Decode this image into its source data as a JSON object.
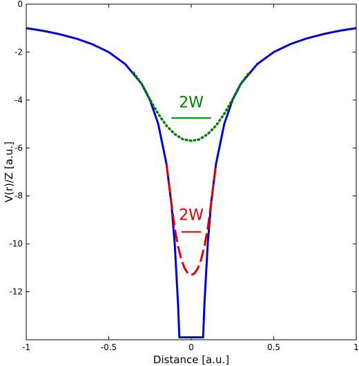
{
  "chart_data": {
    "type": "line",
    "title": "",
    "xlabel": "Distance [a.u.]",
    "ylabel": "V(r)/Z [a.u.]",
    "xlim": [
      -1,
      1
    ],
    "ylim": [
      -14,
      0
    ],
    "xticks": [
      -1,
      -0.5,
      0,
      0.5,
      1
    ],
    "xtick_labels": [
      "-1",
      "-0.5",
      "0",
      "0.5",
      "1"
    ],
    "yticks": [
      0,
      -2,
      -4,
      -6,
      -8,
      -10,
      -12
    ],
    "ytick_labels": [
      "0",
      "-2",
      "-4",
      "-6",
      "-8",
      "-10",
      "-12"
    ],
    "grid": false,
    "legend": "none",
    "series": [
      {
        "style": "solid",
        "color": "#0000cc",
        "x": [
          -1,
          -0.9,
          -0.8,
          -0.7,
          -0.6,
          -0.5,
          -0.4,
          -0.3,
          -0.25,
          -0.2,
          -0.15,
          -0.12,
          -0.1,
          -0.08,
          -0.072,
          0.072,
          0.08,
          0.1,
          0.12,
          0.15,
          0.2,
          0.25,
          0.3,
          0.4,
          0.5,
          0.6,
          0.7,
          0.8,
          0.9,
          1
        ],
        "y": [
          -1,
          -1.11,
          -1.25,
          -1.43,
          -1.67,
          -2,
          -2.5,
          -3.33,
          -4,
          -5,
          -6.67,
          -8.33,
          -10,
          -12.5,
          -13.9,
          -13.9,
          -12.5,
          -10,
          -8.33,
          -6.67,
          -5,
          -4,
          -3.33,
          -2.5,
          -2,
          -1.67,
          -1.43,
          -1.25,
          -1.11,
          -1
        ]
      },
      {
        "style": "dotted",
        "color": "#008000",
        "x": [
          -0.35,
          -0.3,
          -0.25,
          -0.2,
          -0.15,
          -0.1,
          -0.05,
          0,
          0.05,
          0.1,
          0.15,
          0.2,
          0.25,
          0.3,
          0.35
        ],
        "y": [
          -2.86,
          -3.33,
          -3.98,
          -4.58,
          -5.07,
          -5.42,
          -5.64,
          -5.7,
          -5.64,
          -5.42,
          -5.07,
          -4.58,
          -3.98,
          -3.33,
          -2.86
        ]
      },
      {
        "style": "dashed",
        "color": "#dd0000",
        "x": [
          -0.15,
          -0.12,
          -0.1,
          -0.08,
          -0.06,
          -0.04,
          -0.02,
          0,
          0.02,
          0.04,
          0.06,
          0.08,
          0.1,
          0.12,
          0.15
        ],
        "y": [
          -6.67,
          -8.33,
          -9.35,
          -10.1,
          -10.65,
          -11.02,
          -11.23,
          -11.3,
          -11.23,
          -11.02,
          -10.65,
          -10.1,
          -9.35,
          -8.33,
          -6.67
        ]
      }
    ],
    "annotations": [
      {
        "text": "2W",
        "color": "#008000",
        "x": 0,
        "y": -4.3,
        "bar_from": -0.12,
        "bar_to": 0.12,
        "bar_y": -4.75
      },
      {
        "text": "2W",
        "color": "#dd0000",
        "x": 0,
        "y": -9.0,
        "bar_from": -0.06,
        "bar_to": 0.06,
        "bar_y": -9.5
      }
    ]
  }
}
